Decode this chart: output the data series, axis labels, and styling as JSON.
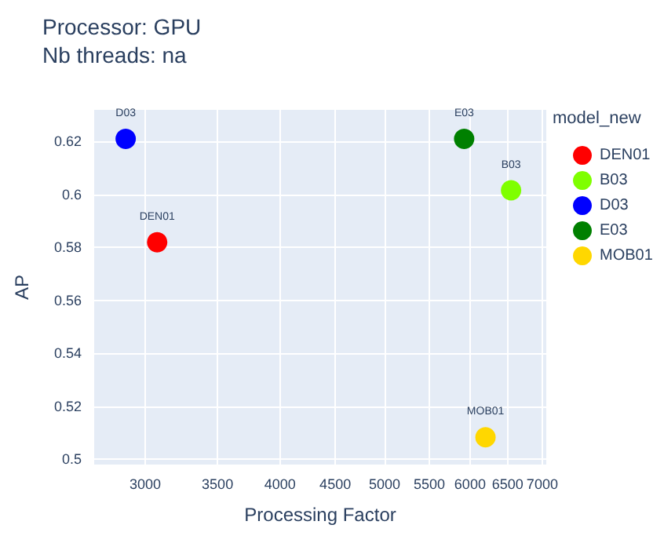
{
  "chart_data": {
    "type": "scatter",
    "title": "Processor: GPU",
    "subtitle": "Nb threads: na",
    "xlabel": "Processing Factor",
    "ylabel": "AP",
    "legend_title": "model_new",
    "series": [
      {
        "name": "DEN01",
        "color": "#ff0000",
        "x": [
          3077
        ],
        "values": [
          0.582
        ]
      },
      {
        "name": "B03",
        "color": "#7fff00",
        "x": [
          6549
        ],
        "values": [
          0.6016
        ]
      },
      {
        "name": "D03",
        "color": "#0000ff",
        "x": [
          2877
        ],
        "values": [
          0.621
        ]
      },
      {
        "name": "E03",
        "color": "#008000",
        "x": [
          5925
        ],
        "values": [
          0.621
        ]
      },
      {
        "name": "MOB01",
        "color": "#ffd700",
        "x": [
          6201
        ],
        "values": [
          0.5083
        ]
      }
    ],
    "log": "x",
    "xlim": [
      2690,
      7060
    ],
    "xticks": [
      3000,
      3500,
      4000,
      4500,
      5000,
      5500,
      6000,
      6500,
      7000
    ],
    "ylim": [
      0.498,
      0.632
    ],
    "yticks": [
      0.5,
      0.52,
      0.54,
      0.56,
      0.58,
      0.6,
      0.62
    ],
    "grid": true,
    "legend": "top right",
    "marker": "circle"
  }
}
